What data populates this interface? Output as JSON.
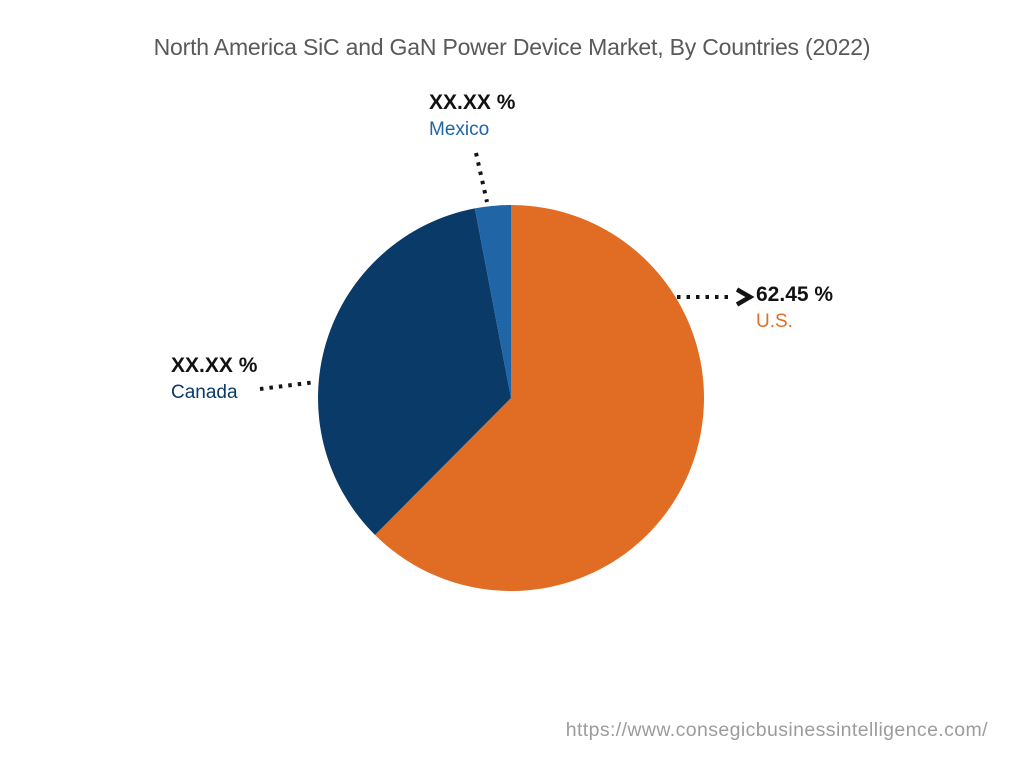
{
  "page": {
    "background_color": "#FFFFFF"
  },
  "header": {
    "title": "North America SiC and GaN Power Device Market, By Countries (2022)",
    "title_color": "#58595B"
  },
  "chart_data": {
    "type": "pie",
    "title": "North America SiC and GaN Power Device Market, By Countries (2022)",
    "value_unit": "%",
    "direction": "clockwise",
    "start_angle_deg": 0,
    "legend_position": "none",
    "callout_style": "dotted-leader-lines",
    "value_text_color": "#121212",
    "leader_line_color": "#141414",
    "slices": [
      {
        "label": "U.S.",
        "value": 62.45,
        "displayed_value": "62.45 %",
        "value_masked": false,
        "color": "#E16D25"
      },
      {
        "label": "Canada",
        "value": 34.55,
        "displayed_value": "XX.XX %",
        "value_masked": true,
        "color": "#0A3A68"
      },
      {
        "label": "Mexico",
        "value": 3.0,
        "displayed_value": "XX.XX %",
        "value_masked": true,
        "color": "#2065A6"
      }
    ]
  },
  "footer": {
    "url": "https://www.consegicbusinessintelligence.com/",
    "color": "#9C9C9F"
  }
}
